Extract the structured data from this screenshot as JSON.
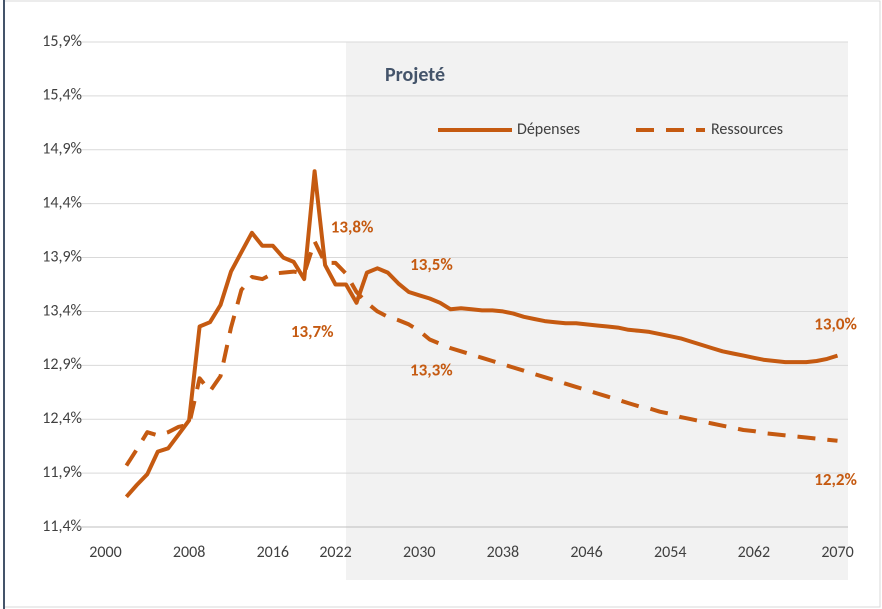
{
  "chart_data": {
    "type": "line",
    "x": [
      2002,
      2003,
      2004,
      2005,
      2006,
      2007,
      2008,
      2009,
      2010,
      2011,
      2012,
      2013,
      2014,
      2015,
      2016,
      2017,
      2018,
      2019,
      2020,
      2021,
      2022,
      2023,
      2024,
      2025,
      2026,
      2027,
      2028,
      2029,
      2030,
      2031,
      2032,
      2033,
      2034,
      2035,
      2036,
      2037,
      2038,
      2039,
      2040,
      2041,
      2042,
      2043,
      2044,
      2045,
      2046,
      2047,
      2048,
      2049,
      2050,
      2051,
      2052,
      2053,
      2054,
      2055,
      2056,
      2057,
      2058,
      2059,
      2060,
      2061,
      2062,
      2063,
      2064,
      2065,
      2066,
      2067,
      2068,
      2069,
      2070
    ],
    "series": [
      {
        "name": "Dépenses",
        "color": "#c55a11",
        "dash": false,
        "values": [
          11.68,
          11.79,
          11.89,
          12.1,
          12.13,
          12.26,
          12.39,
          13.26,
          13.3,
          13.46,
          13.77,
          13.95,
          14.13,
          14.01,
          14.01,
          13.9,
          13.86,
          13.7,
          14.7,
          13.83,
          13.65,
          13.65,
          13.48,
          13.76,
          13.8,
          13.76,
          13.66,
          13.58,
          13.55,
          13.52,
          13.48,
          13.42,
          13.43,
          13.42,
          13.41,
          13.41,
          13.4,
          13.38,
          13.35,
          13.33,
          13.31,
          13.3,
          13.29,
          13.29,
          13.28,
          13.27,
          13.26,
          13.25,
          13.23,
          13.22,
          13.21,
          13.19,
          13.17,
          13.15,
          13.12,
          13.09,
          13.06,
          13.03,
          13.01,
          12.99,
          12.97,
          12.95,
          12.94,
          12.93,
          12.93,
          12.93,
          12.94,
          12.96,
          12.99
        ]
      },
      {
        "name": "Ressources",
        "color": "#c55a11",
        "dash": true,
        "values": [
          11.97,
          12.12,
          12.28,
          12.25,
          12.28,
          12.33,
          12.35,
          12.78,
          12.66,
          12.8,
          13.25,
          13.6,
          13.72,
          13.7,
          13.75,
          13.76,
          13.77,
          13.75,
          14.05,
          13.85,
          13.85,
          13.75,
          13.58,
          13.48,
          13.4,
          13.35,
          13.32,
          13.28,
          13.22,
          13.14,
          13.1,
          13.06,
          13.03,
          13.0,
          12.97,
          12.94,
          12.91,
          12.88,
          12.85,
          12.82,
          12.79,
          12.76,
          12.73,
          12.7,
          12.67,
          12.64,
          12.61,
          12.58,
          12.55,
          12.52,
          12.5,
          12.47,
          12.45,
          12.42,
          12.4,
          12.38,
          12.36,
          12.34,
          12.32,
          12.3,
          12.29,
          12.27,
          12.26,
          12.25,
          12.24,
          12.23,
          12.22,
          12.21,
          12.2
        ]
      }
    ],
    "annotations": [
      {
        "label": "13,8%",
        "value": 13.8,
        "x": 2021
      },
      {
        "label": "13,7%",
        "value": 13.7,
        "x": 2019
      },
      {
        "label": "13,5%",
        "value": 13.5,
        "x": 2024
      },
      {
        "label": "13,3%",
        "value": 13.3,
        "x": 2028
      },
      {
        "label": "13,0%",
        "value": 13.0,
        "x": 2070
      },
      {
        "label": "12,2%",
        "value": 12.2,
        "x": 2070
      }
    ],
    "shaded_label": "Projeté",
    "shaded_from": 2023,
    "xlim": [
      1999,
      2071
    ],
    "xticks": [
      2000,
      2008,
      2016,
      2022,
      2030,
      2038,
      2046,
      2054,
      2062,
      2070
    ],
    "ylim": [
      11.4,
      15.9
    ],
    "yticks": [
      {
        "value": 11.4,
        "label": "11,4%"
      },
      {
        "value": 11.9,
        "label": "11,9%"
      },
      {
        "value": 12.4,
        "label": "12,4%"
      },
      {
        "value": 12.9,
        "label": "12,9%"
      },
      {
        "value": 13.4,
        "label": "13,4%"
      },
      {
        "value": 13.9,
        "label": "13,9%"
      },
      {
        "value": 14.4,
        "label": "14,4%"
      },
      {
        "value": 14.9,
        "label": "14,9%"
      },
      {
        "value": 15.4,
        "label": "15,4%"
      },
      {
        "value": 15.9,
        "label": "15,9%"
      }
    ],
    "grid": true,
    "legend": "upper right"
  }
}
